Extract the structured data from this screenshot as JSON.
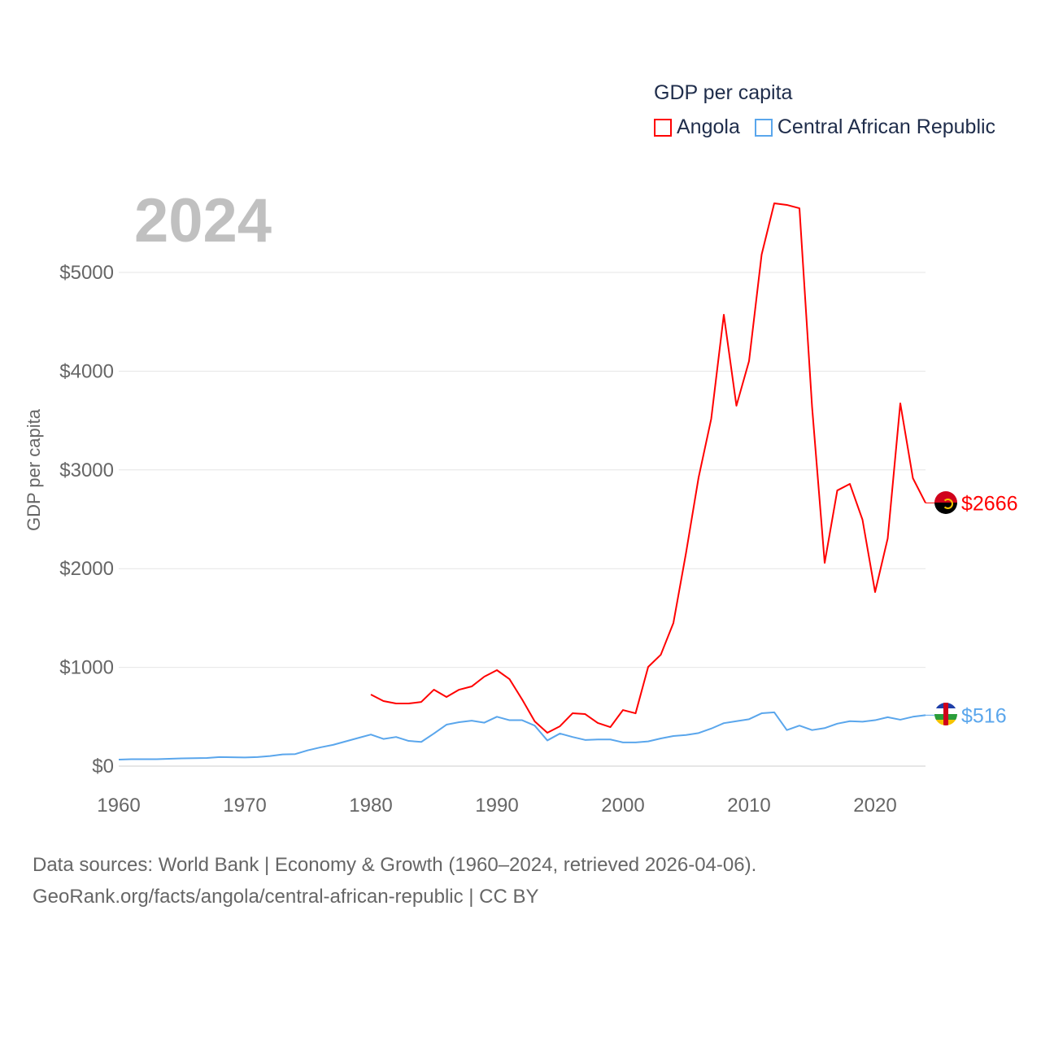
{
  "legend": {
    "title": "GDP per capita",
    "items": [
      {
        "name": "Angola",
        "color": "#ff0000"
      },
      {
        "name": "Central African Republic",
        "color": "#5aa6ec"
      }
    ]
  },
  "year_label": "2024",
  "footer": {
    "line1": "Data sources: World Bank | Economy & Growth (1960–2024, retrieved 2026-04-06).",
    "line2": "GeoRank.org/facts/angola/central-african-republic | CC BY"
  },
  "chart_data": {
    "type": "line",
    "title": "GDP per capita",
    "xlabel": "",
    "ylabel": "GDP per capita",
    "xlim": [
      1960,
      2024
    ],
    "ylim": [
      0,
      5800
    ],
    "xticks": [
      1960,
      1970,
      1980,
      1990,
      2000,
      2010,
      2020
    ],
    "xtick_labels": [
      "1960",
      "1970",
      "1980",
      "1990",
      "2000",
      "2010",
      "2020"
    ],
    "yticks": [
      0,
      1000,
      2000,
      3000,
      4000,
      5000
    ],
    "ytick_labels": [
      "$0",
      "$1000",
      "$2000",
      "$3000",
      "$4000",
      "$5000"
    ],
    "grid": true,
    "legend_position": "top-right",
    "series": [
      {
        "name": "Angola",
        "color": "#ff0000",
        "end_label": "$2666",
        "x_start": 1980,
        "values": [
          725,
          659,
          634,
          634,
          650,
          774,
          700,
          774,
          807,
          906,
          972,
          881,
          675,
          453,
          338,
          404,
          535,
          527,
          437,
          395,
          568,
          535,
          1005,
          1128,
          1450,
          2158,
          2924,
          3517,
          4572,
          3650,
          4102,
          5181,
          5700,
          5684,
          5650,
          3640,
          2059,
          2792,
          2858,
          2496,
          1763,
          2306,
          3674,
          2916,
          2666
        ]
      },
      {
        "name": "Central African Republic",
        "color": "#5aa6ec",
        "end_label": "$516",
        "x_start": 1960,
        "values": [
          66,
          70,
          70,
          70,
          74,
          78,
          80,
          82,
          92,
          90,
          88,
          92,
          102,
          118,
          122,
          160,
          190,
          215,
          250,
          285,
          320,
          275,
          295,
          255,
          245,
          330,
          420,
          445,
          460,
          440,
          500,
          465,
          465,
          410,
          260,
          330,
          295,
          265,
          270,
          270,
          240,
          240,
          250,
          280,
          305,
          315,
          335,
          380,
          435,
          455,
          475,
          535,
          545,
          365,
          410,
          365,
          385,
          430,
          455,
          450,
          465,
          495,
          470,
          500,
          516
        ]
      }
    ]
  }
}
